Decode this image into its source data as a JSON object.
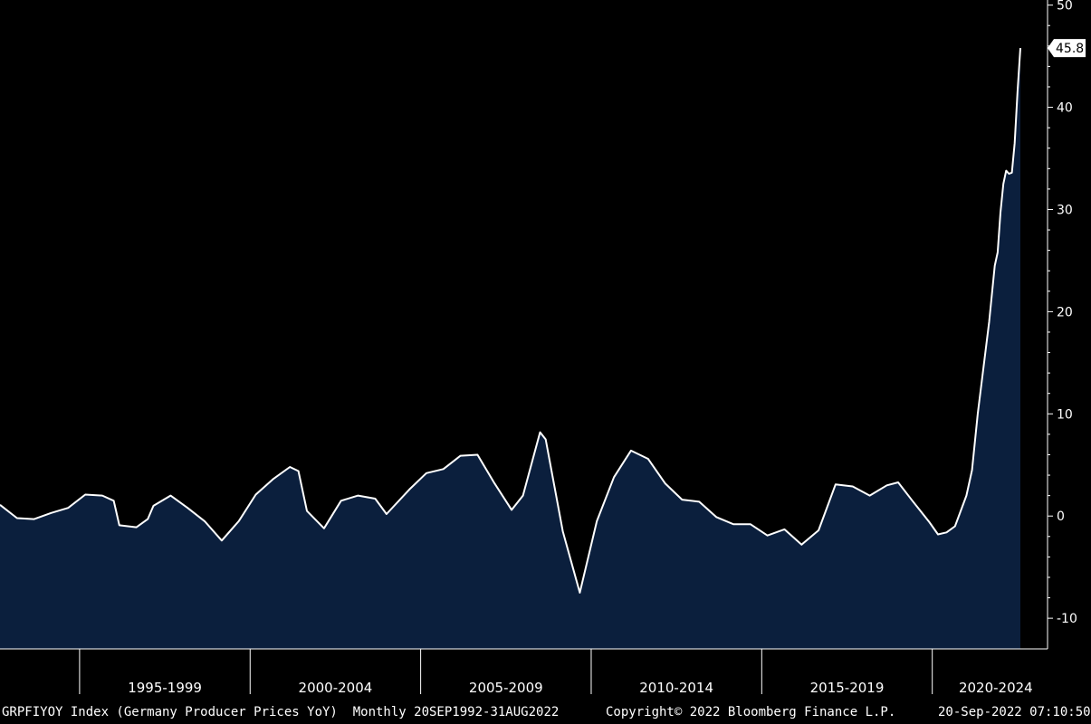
{
  "chart_data": {
    "type": "area",
    "ticker": "GRPFIYOY Index",
    "x_range": [
      "1992-09",
      "2022-08"
    ],
    "y_range": [
      -13,
      50.5
    ],
    "y_ticks": [
      50,
      40,
      30,
      20,
      10,
      0,
      -10
    ],
    "y_tick_labels": [
      "50",
      "40",
      "30",
      "20",
      "10",
      "0",
      "-10"
    ],
    "x_period_labels": [
      "1995-1999",
      "2000-2004",
      "2005-2009",
      "2010-2014",
      "2015-2019",
      "2020-2024"
    ],
    "last_value": 45.8,
    "last_value_label": "45.8",
    "points": [
      [
        "1992-09",
        1.1
      ],
      [
        "1993-03",
        -0.2
      ],
      [
        "1993-09",
        -0.3
      ],
      [
        "1994-03",
        0.3
      ],
      [
        "1994-09",
        0.8
      ],
      [
        "1995-03",
        2.1
      ],
      [
        "1995-09",
        2.0
      ],
      [
        "1996-01",
        1.5
      ],
      [
        "1996-03",
        -0.9
      ],
      [
        "1996-09",
        -1.1
      ],
      [
        "1997-01",
        -0.3
      ],
      [
        "1997-03",
        1.0
      ],
      [
        "1997-09",
        2.0
      ],
      [
        "1998-03",
        0.8
      ],
      [
        "1998-09",
        -0.5
      ],
      [
        "1999-03",
        -2.4
      ],
      [
        "1999-09",
        -0.5
      ],
      [
        "2000-03",
        2.1
      ],
      [
        "2000-09",
        3.6
      ],
      [
        "2001-03",
        4.8
      ],
      [
        "2001-06",
        4.4
      ],
      [
        "2001-09",
        0.5
      ],
      [
        "2002-03",
        -1.2
      ],
      [
        "2002-09",
        1.5
      ],
      [
        "2003-03",
        2.0
      ],
      [
        "2003-09",
        1.7
      ],
      [
        "2004-01",
        0.2
      ],
      [
        "2004-09",
        2.6
      ],
      [
        "2005-03",
        4.2
      ],
      [
        "2005-09",
        4.6
      ],
      [
        "2006-03",
        5.9
      ],
      [
        "2006-09",
        6.0
      ],
      [
        "2007-03",
        3.2
      ],
      [
        "2007-09",
        0.6
      ],
      [
        "2008-01",
        2.0
      ],
      [
        "2008-07",
        8.2
      ],
      [
        "2008-09",
        7.5
      ],
      [
        "2009-03",
        -1.5
      ],
      [
        "2009-09",
        -7.5
      ],
      [
        "2010-03",
        -0.5
      ],
      [
        "2010-09",
        3.8
      ],
      [
        "2011-03",
        6.4
      ],
      [
        "2011-09",
        5.6
      ],
      [
        "2012-03",
        3.2
      ],
      [
        "2012-09",
        1.6
      ],
      [
        "2013-03",
        1.4
      ],
      [
        "2013-09",
        -0.1
      ],
      [
        "2014-03",
        -0.8
      ],
      [
        "2014-09",
        -0.8
      ],
      [
        "2015-03",
        -1.9
      ],
      [
        "2015-09",
        -1.3
      ],
      [
        "2016-03",
        -2.8
      ],
      [
        "2016-09",
        -1.4
      ],
      [
        "2017-03",
        3.1
      ],
      [
        "2017-09",
        2.9
      ],
      [
        "2018-03",
        2.0
      ],
      [
        "2018-09",
        3.0
      ],
      [
        "2019-01",
        3.3
      ],
      [
        "2019-06",
        1.5
      ],
      [
        "2019-12",
        -0.6
      ],
      [
        "2020-03",
        -1.8
      ],
      [
        "2020-06",
        -1.6
      ],
      [
        "2020-09",
        -1.0
      ],
      [
        "2021-01",
        2.0
      ],
      [
        "2021-03",
        4.5
      ],
      [
        "2021-05",
        10.0
      ],
      [
        "2021-07",
        14.5
      ],
      [
        "2021-09",
        19.0
      ],
      [
        "2021-11",
        24.5
      ],
      [
        "2021-12",
        25.8
      ],
      [
        "2022-01",
        29.7
      ],
      [
        "2022-02",
        32.5
      ],
      [
        "2022-03",
        33.8
      ],
      [
        "2022-04",
        33.5
      ],
      [
        "2022-05",
        33.6
      ],
      [
        "2022-06",
        36.5
      ],
      [
        "2022-07",
        41.6
      ],
      [
        "2022-08",
        45.8
      ]
    ],
    "colors": {
      "background": "#000000",
      "area_fill": "#0b1f3d",
      "line": "#ffffff",
      "axis": "#ffffff",
      "label_bg": "#ffffff"
    }
  },
  "footer": {
    "left": "GRPFIYOY Index (Germany Producer Prices YoY)  Monthly 20SEP1992-31AUG2022",
    "center": "Copyright© 2022 Bloomberg Finance L.P.",
    "right": "20-Sep-2022 07:10:50"
  }
}
